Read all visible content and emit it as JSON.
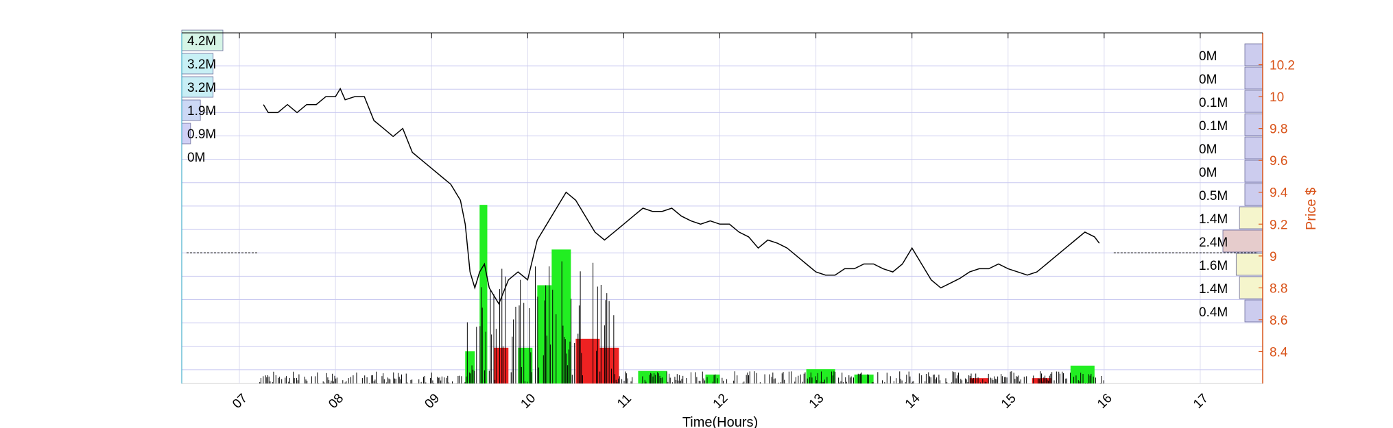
{
  "colors": {
    "grid": "#c8c8f0",
    "price_axis": "#d95319",
    "up_bar": "#22ee22",
    "down_bar": "#ee2222",
    "price_line": "#000000",
    "left_profile": [
      "#d6f5e6",
      "#c8f0f5",
      "#c8eef5",
      "#ccd8f5",
      "#d0d0f5",
      "#d0d0f5"
    ],
    "right_profile": [
      "#ccccee",
      "#ccccee",
      "#ccccee",
      "#ccccee",
      "#ccccee",
      "#ccccee",
      "#ccccee",
      "#f5f5cc",
      "#e6cccc",
      "#f5f5cc",
      "#f5f5cc",
      "#ccccee"
    ]
  },
  "chart_data": {
    "type": "line",
    "xlabel": "Time(Hours)",
    "ylabel": "Price $",
    "x_ticks": [
      "07",
      "08",
      "09",
      "10",
      "11",
      "12",
      "13",
      "14",
      "15",
      "16",
      "17"
    ],
    "xlim": [
      6.4,
      17.65
    ],
    "y_ticks": [
      "8.4",
      "8.6",
      "8.8",
      "9",
      "9.2",
      "9.4",
      "9.6",
      "9.8",
      "10",
      "10.2"
    ],
    "ylim": [
      8.2,
      10.4
    ],
    "price_series": {
      "name": "",
      "x": [
        7.25,
        7.3,
        7.4,
        7.5,
        7.6,
        7.7,
        7.8,
        7.9,
        8.0,
        8.05,
        8.1,
        8.2,
        8.3,
        8.4,
        8.5,
        8.6,
        8.7,
        8.8,
        8.9,
        9.0,
        9.1,
        9.2,
        9.3,
        9.35,
        9.4,
        9.45,
        9.5,
        9.55,
        9.6,
        9.7,
        9.8,
        9.9,
        10.0,
        10.1,
        10.2,
        10.3,
        10.4,
        10.5,
        10.6,
        10.7,
        10.8,
        10.9,
        11.0,
        11.1,
        11.2,
        11.3,
        11.4,
        11.5,
        11.6,
        11.7,
        11.8,
        11.9,
        12.0,
        12.1,
        12.2,
        12.3,
        12.4,
        12.5,
        12.6,
        12.7,
        12.8,
        12.9,
        13.0,
        13.1,
        13.2,
        13.3,
        13.4,
        13.5,
        13.6,
        13.7,
        13.8,
        13.9,
        14.0,
        14.1,
        14.2,
        14.3,
        14.4,
        14.5,
        14.6,
        14.7,
        14.8,
        14.9,
        15.0,
        15.1,
        15.2,
        15.3,
        15.4,
        15.5,
        15.6,
        15.7,
        15.8,
        15.9,
        15.95
      ],
      "y": [
        9.95,
        9.9,
        9.9,
        9.95,
        9.9,
        9.95,
        9.95,
        10.0,
        10.0,
        10.05,
        9.98,
        10.0,
        10.0,
        9.85,
        9.8,
        9.75,
        9.8,
        9.65,
        9.6,
        9.55,
        9.5,
        9.45,
        9.35,
        9.2,
        8.9,
        8.8,
        8.9,
        8.95,
        8.8,
        8.7,
        8.85,
        8.9,
        8.85,
        9.1,
        9.2,
        9.3,
        9.4,
        9.35,
        9.25,
        9.15,
        9.1,
        9.15,
        9.2,
        9.25,
        9.3,
        9.28,
        9.28,
        9.3,
        9.25,
        9.22,
        9.2,
        9.22,
        9.2,
        9.2,
        9.15,
        9.12,
        9.05,
        9.1,
        9.08,
        9.05,
        9.0,
        8.95,
        8.9,
        8.88,
        8.88,
        8.92,
        8.92,
        8.95,
        8.95,
        8.92,
        8.9,
        8.95,
        9.05,
        8.95,
        8.85,
        8.8,
        8.83,
        8.86,
        8.9,
        8.92,
        8.92,
        8.95,
        8.92,
        8.9,
        8.88,
        8.9,
        8.95,
        9.0,
        9.05,
        9.1,
        9.15,
        9.12,
        9.08
      ]
    },
    "left_profile": {
      "labels": [
        "4.2M",
        "3.2M",
        "3.2M",
        "1.9M",
        "0.9M",
        "0M"
      ],
      "values": [
        4.2,
        3.2,
        3.2,
        1.9,
        0.9,
        0
      ]
    },
    "right_profile": {
      "labels": [
        "0M",
        "0M",
        "0.1M",
        "0.1M",
        "0M",
        "0M",
        "0.5M",
        "1.4M",
        "2.4M",
        "1.6M",
        "1.4M",
        "0.4M"
      ],
      "values": [
        0,
        0,
        0.1,
        0.1,
        0,
        0,
        0.5,
        1.4,
        2.4,
        1.6,
        1.4,
        0.4
      ],
      "price_levels": [
        10.2,
        10.05,
        9.9,
        9.75,
        9.6,
        9.45,
        9.35,
        9.2,
        9.05,
        8.9,
        8.75,
        8.6
      ]
    },
    "volume_bars": {
      "up": [
        {
          "x0": 9.35,
          "x1": 9.45,
          "v": 0.18
        },
        {
          "x0": 9.5,
          "x1": 9.58,
          "v": 1.0
        },
        {
          "x0": 9.9,
          "x1": 10.05,
          "v": 0.2
        },
        {
          "x0": 10.1,
          "x1": 10.25,
          "v": 0.55
        },
        {
          "x0": 10.25,
          "x1": 10.45,
          "v": 0.75
        },
        {
          "x0": 11.15,
          "x1": 11.45,
          "v": 0.07
        },
        {
          "x0": 11.85,
          "x1": 12.0,
          "v": 0.05
        },
        {
          "x0": 12.9,
          "x1": 13.2,
          "v": 0.08
        },
        {
          "x0": 13.4,
          "x1": 13.6,
          "v": 0.05
        },
        {
          "x0": 15.65,
          "x1": 15.9,
          "v": 0.1
        }
      ],
      "down": [
        {
          "x0": 9.65,
          "x1": 9.8,
          "v": 0.2
        },
        {
          "x0": 10.5,
          "x1": 10.75,
          "v": 0.25
        },
        {
          "x0": 10.75,
          "x1": 10.95,
          "v": 0.2
        },
        {
          "x0": 14.6,
          "x1": 14.8,
          "v": 0.03
        },
        {
          "x0": 15.25,
          "x1": 15.45,
          "v": 0.03
        }
      ],
      "ylim": [
        0,
        1.15
      ]
    }
  }
}
